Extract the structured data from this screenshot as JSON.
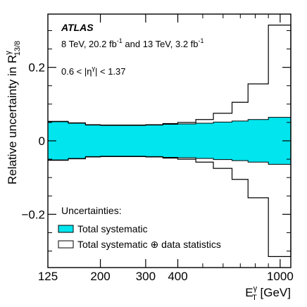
{
  "chart_data": {
    "type": "area",
    "x_scale": "log",
    "xlim": [
      125,
      1100
    ],
    "ylim": [
      -0.345,
      0.345
    ],
    "yticks": [
      -0.2,
      0,
      0.2
    ],
    "ytick_labels": [
      "−0.2",
      "0",
      "0.2"
    ],
    "xtick_labels": [
      {
        "value": 125,
        "label": "125"
      },
      {
        "value": 200,
        "label": "200"
      },
      {
        "value": 300,
        "label": "300"
      },
      {
        "value": 400,
        "label": "400"
      },
      {
        "value": 1000,
        "label": "1000"
      }
    ],
    "xlabel": {
      "main": "E",
      "sup": "γ",
      "sub": "T",
      "unit": " [GeV]"
    },
    "ylabel": {
      "main": "Relative uncertainty in R",
      "sup": "γ",
      "sub": "13/8"
    },
    "bin_edges": [
      125,
      150,
      175,
      200,
      250,
      300,
      350,
      400,
      470,
      550,
      650,
      750,
      900,
      1100
    ],
    "series": [
      {
        "name": "Total systematic",
        "style": "filled",
        "color": "#00e5ee",
        "upper": [
          0.052,
          0.048,
          0.043,
          0.042,
          0.042,
          0.043,
          0.045,
          0.046,
          0.048,
          0.051,
          0.054,
          0.058,
          0.064
        ],
        "lower": [
          -0.052,
          -0.048,
          -0.043,
          -0.042,
          -0.042,
          -0.043,
          -0.045,
          -0.046,
          -0.048,
          -0.051,
          -0.054,
          -0.058,
          -0.064
        ]
      },
      {
        "name": "Total systematic ⊕ data statistics",
        "style": "outline",
        "color": "#000000",
        "upper": [
          0.053,
          0.049,
          0.044,
          0.043,
          0.043,
          0.044,
          0.047,
          0.05,
          0.058,
          0.075,
          0.105,
          0.155,
          0.315
        ],
        "lower": [
          -0.053,
          -0.049,
          -0.044,
          -0.043,
          -0.043,
          -0.044,
          -0.047,
          -0.05,
          -0.058,
          -0.075,
          -0.105,
          -0.155,
          -0.315
        ]
      }
    ],
    "annotations": {
      "experiment": "ATLAS",
      "energy_line": {
        "a": "8 TeV, 20.2 fb",
        "a_sup": "-1",
        "b": " and 13 TeV, 3.2 fb",
        "b_sup": "-1"
      },
      "eta_range": {
        "a": "0.6 < |η",
        "sup": "γ",
        "b": "| < 1.37"
      }
    },
    "legend": {
      "title": "Uncertainties:",
      "placement": "bottom-left"
    },
    "grid": false
  }
}
